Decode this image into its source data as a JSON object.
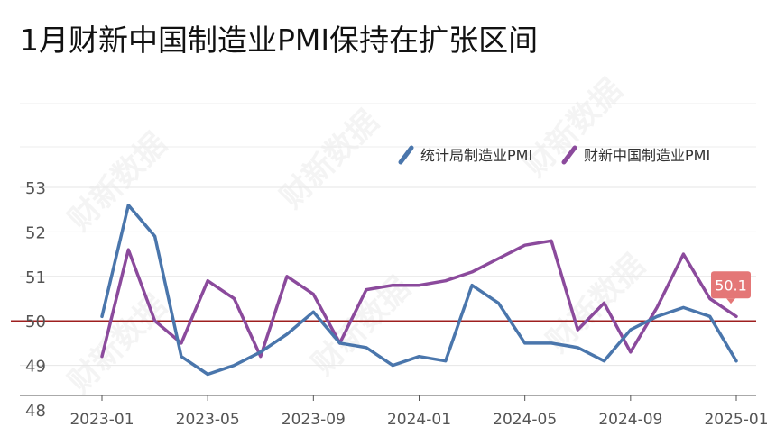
{
  "title": "1月财新中国制造业PMI保持在扩张区间",
  "watermark_text": "财新数据",
  "chart_data": {
    "type": "line",
    "x": [
      "2023-01",
      "2023-02",
      "2023-03",
      "2023-04",
      "2023-05",
      "2023-06",
      "2023-07",
      "2023-08",
      "2023-09",
      "2023-10",
      "2023-11",
      "2023-12",
      "2024-01",
      "2024-02",
      "2024-03",
      "2024-04",
      "2024-05",
      "2024-06",
      "2024-07",
      "2024-08",
      "2024-09",
      "2024-10",
      "2024-11",
      "2024-12",
      "2025-01"
    ],
    "xtick_labels": [
      "2023-01",
      "2023-05",
      "2023-09",
      "2024-01",
      "2024-05",
      "2024-09",
      "2025-01"
    ],
    "xtick_indices": [
      0,
      4,
      8,
      12,
      16,
      20,
      24
    ],
    "ylim": [
      48,
      53
    ],
    "yticks": [
      48,
      49,
      50,
      51,
      52,
      53
    ],
    "reference_line": 50,
    "series": [
      {
        "name": "统计局制造业PMI",
        "color": "#4a76ac",
        "values": [
          50.1,
          52.6,
          51.9,
          49.2,
          48.8,
          49.0,
          49.3,
          49.7,
          50.2,
          49.5,
          49.4,
          49.0,
          49.2,
          49.1,
          50.8,
          50.4,
          49.5,
          49.5,
          49.4,
          49.1,
          49.8,
          50.1,
          50.3,
          50.1,
          49.1
        ]
      },
      {
        "name": "财新中国制造业PMI",
        "color": "#8b4a9c",
        "values": [
          49.2,
          51.6,
          50.0,
          49.5,
          50.9,
          50.5,
          49.2,
          51.0,
          50.6,
          49.5,
          50.7,
          50.8,
          50.8,
          50.9,
          51.1,
          51.4,
          51.7,
          51.8,
          49.8,
          50.4,
          49.3,
          50.3,
          51.5,
          50.5,
          50.1
        ]
      }
    ],
    "end_label": "50.1",
    "end_label_color": "#e47777",
    "legend_position": "top-right",
    "grid": true
  }
}
